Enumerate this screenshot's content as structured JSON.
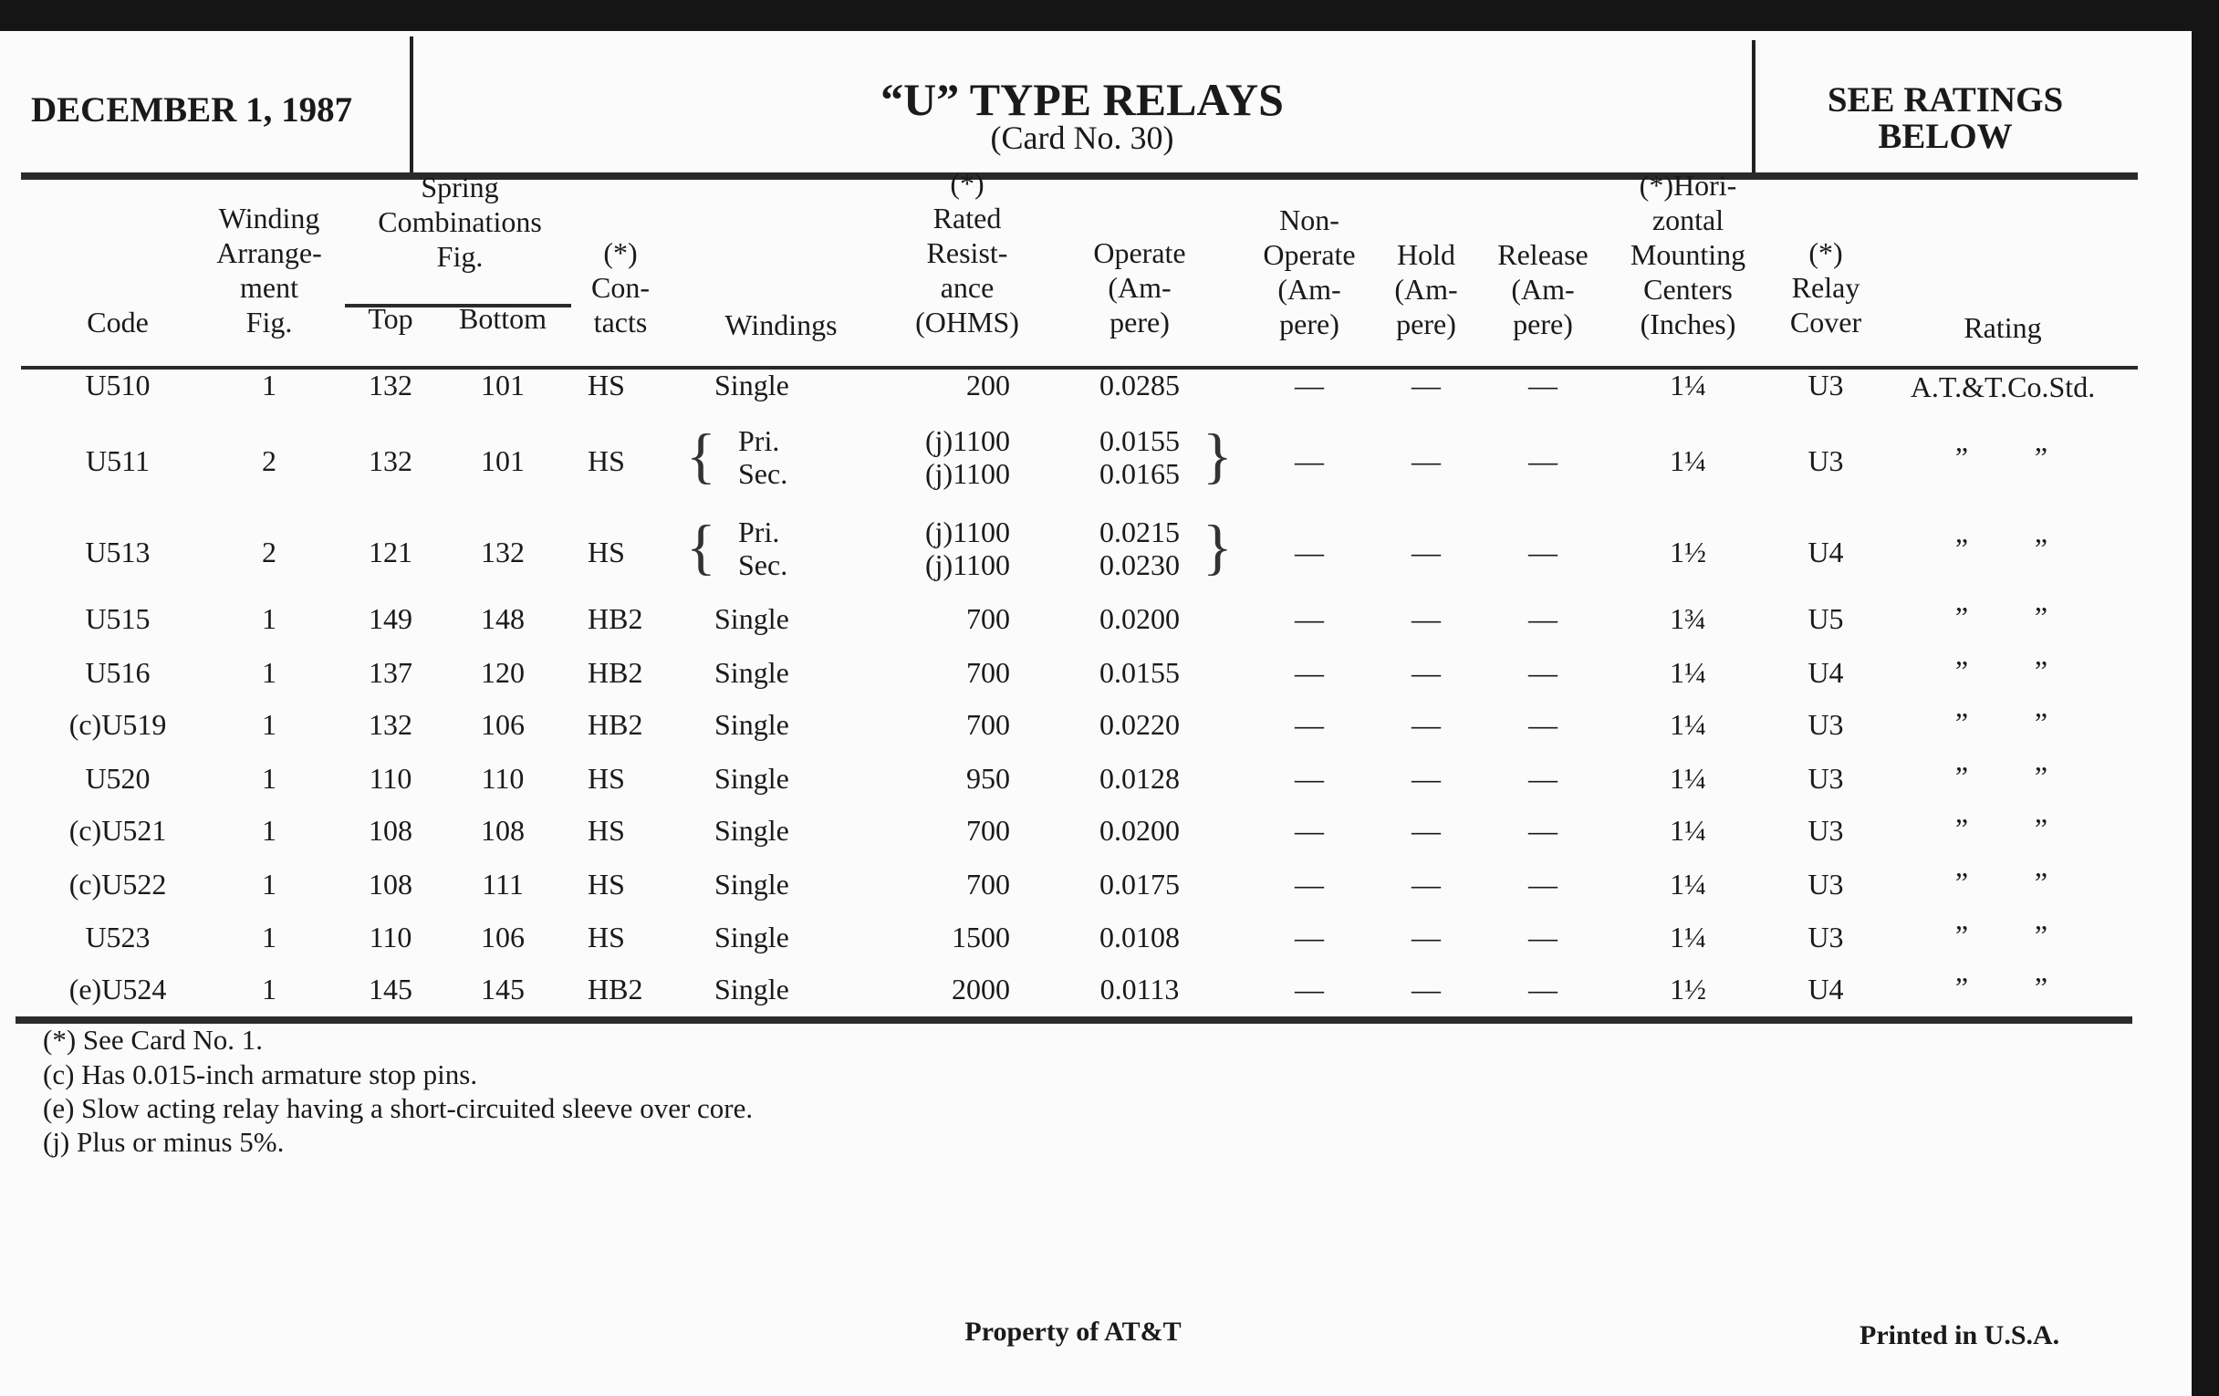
{
  "header": {
    "date": "DECEMBER 1, 1987",
    "title": "“U” TYPE RELAYS",
    "subtitle": "(Card No. 30)",
    "ratings_note_line1": "SEE RATINGS",
    "ratings_note_line2": "BELOW"
  },
  "columns": {
    "code": [
      "Code"
    ],
    "winding": [
      "Winding",
      "Arrange-",
      "ment",
      "Fig."
    ],
    "spring": [
      "Spring",
      "Combinations",
      "Fig."
    ],
    "top": [
      "Top"
    ],
    "bottom": [
      "Bottom"
    ],
    "contacts": [
      "(*)",
      "Con-",
      "tacts"
    ],
    "windings": [
      "Windings"
    ],
    "resistance": [
      "(*)",
      "Rated",
      "Resist-",
      "ance",
      "(OHMS)"
    ],
    "operate": [
      "Operate",
      "(Am-",
      "pere)"
    ],
    "nonoperate": [
      "Non-",
      "Operate",
      "(Am-",
      "pere)"
    ],
    "hold": [
      "Hold",
      "(Am-",
      "pere)"
    ],
    "release": [
      "Release",
      "(Am-",
      "pere)"
    ],
    "mounting": [
      "(*)Hori-",
      "zontal",
      "Mounting",
      "Centers",
      "(Inches)"
    ],
    "cover": [
      "(*)",
      "Relay",
      "Cover"
    ],
    "rating": [
      "Rating"
    ]
  },
  "rows": [
    {
      "code": "U510",
      "winding": "1",
      "top": "132",
      "bottom": "101",
      "contacts": "HS",
      "windings": [
        "Single"
      ],
      "resistance": [
        "200"
      ],
      "operate": [
        "0.0285"
      ],
      "nonoperate": "—",
      "hold": "—",
      "release": "—",
      "mounting": "1¼",
      "cover": "U3",
      "rating": [
        "A.T.&T.Co.Std."
      ]
    },
    {
      "code": "U511",
      "winding": "2",
      "top": "132",
      "bottom": "101",
      "contacts": "HS",
      "windings": [
        "Pri.",
        "Sec."
      ],
      "resistance": [
        "(j)1100",
        "(j)1100"
      ],
      "operate": [
        "0.0155",
        "0.0165"
      ],
      "nonoperate": "—",
      "hold": "—",
      "release": "—",
      "mounting": "1¼",
      "cover": "U3",
      "rating": [
        "”",
        "”"
      ]
    },
    {
      "code": "U513",
      "winding": "2",
      "top": "121",
      "bottom": "132",
      "contacts": "HS",
      "windings": [
        "Pri.",
        "Sec."
      ],
      "resistance": [
        "(j)1100",
        "(j)1100"
      ],
      "operate": [
        "0.0215",
        "0.0230"
      ],
      "nonoperate": "—",
      "hold": "—",
      "release": "—",
      "mounting": "1½",
      "cover": "U4",
      "rating": [
        "”",
        "”"
      ]
    },
    {
      "code": "U515",
      "winding": "1",
      "top": "149",
      "bottom": "148",
      "contacts": "HB2",
      "windings": [
        "Single"
      ],
      "resistance": [
        "700"
      ],
      "operate": [
        "0.0200"
      ],
      "nonoperate": "—",
      "hold": "—",
      "release": "—",
      "mounting": "1¾",
      "cover": "U5",
      "rating": [
        "”",
        "”"
      ]
    },
    {
      "code": "U516",
      "winding": "1",
      "top": "137",
      "bottom": "120",
      "contacts": "HB2",
      "windings": [
        "Single"
      ],
      "resistance": [
        "700"
      ],
      "operate": [
        "0.0155"
      ],
      "nonoperate": "—",
      "hold": "—",
      "release": "—",
      "mounting": "1¼",
      "cover": "U4",
      "rating": [
        "”",
        "”"
      ]
    },
    {
      "code": "(c)U519",
      "winding": "1",
      "top": "132",
      "bottom": "106",
      "contacts": "HB2",
      "windings": [
        "Single"
      ],
      "resistance": [
        "700"
      ],
      "operate": [
        "0.0220"
      ],
      "nonoperate": "—",
      "hold": "—",
      "release": "—",
      "mounting": "1¼",
      "cover": "U3",
      "rating": [
        "”",
        "”"
      ]
    },
    {
      "code": "U520",
      "winding": "1",
      "top": "110",
      "bottom": "110",
      "contacts": "HS",
      "windings": [
        "Single"
      ],
      "resistance": [
        "950"
      ],
      "operate": [
        "0.0128"
      ],
      "nonoperate": "—",
      "hold": "—",
      "release": "—",
      "mounting": "1¼",
      "cover": "U3",
      "rating": [
        "”",
        "”"
      ]
    },
    {
      "code": "(c)U521",
      "winding": "1",
      "top": "108",
      "bottom": "108",
      "contacts": "HS",
      "windings": [
        "Single"
      ],
      "resistance": [
        "700"
      ],
      "operate": [
        "0.0200"
      ],
      "nonoperate": "—",
      "hold": "—",
      "release": "—",
      "mounting": "1¼",
      "cover": "U3",
      "rating": [
        "”",
        "”"
      ]
    },
    {
      "code": "(c)U522",
      "winding": "1",
      "top": "108",
      "bottom": "111",
      "contacts": "HS",
      "windings": [
        "Single"
      ],
      "resistance": [
        "700"
      ],
      "operate": [
        "0.0175"
      ],
      "nonoperate": "—",
      "hold": "—",
      "release": "—",
      "mounting": "1¼",
      "cover": "U3",
      "rating": [
        "”",
        "”"
      ]
    },
    {
      "code": "U523",
      "winding": "1",
      "top": "110",
      "bottom": "106",
      "contacts": "HS",
      "windings": [
        "Single"
      ],
      "resistance": [
        "1500"
      ],
      "operate": [
        "0.0108"
      ],
      "nonoperate": "—",
      "hold": "—",
      "release": "—",
      "mounting": "1¼",
      "cover": "U3",
      "rating": [
        "”",
        "”"
      ]
    },
    {
      "code": "(e)U524",
      "winding": "1",
      "top": "145",
      "bottom": "145",
      "contacts": "HB2",
      "windings": [
        "Single"
      ],
      "resistance": [
        "2000"
      ],
      "operate": [
        "0.0113"
      ],
      "nonoperate": "—",
      "hold": "—",
      "release": "—",
      "mounting": "1½",
      "cover": "U4",
      "rating": [
        "”",
        "”"
      ]
    }
  ],
  "footnotes": [
    "(*)  See Card No. 1.",
    "(c)  Has 0.015-inch armature stop pins.",
    "(e)  Slow acting relay having a short-circuited sleeve over core.",
    "(j)   Plus or minus 5%."
  ],
  "footer": {
    "property": "Property of AT&T",
    "printed": "Printed in U.S.A."
  }
}
